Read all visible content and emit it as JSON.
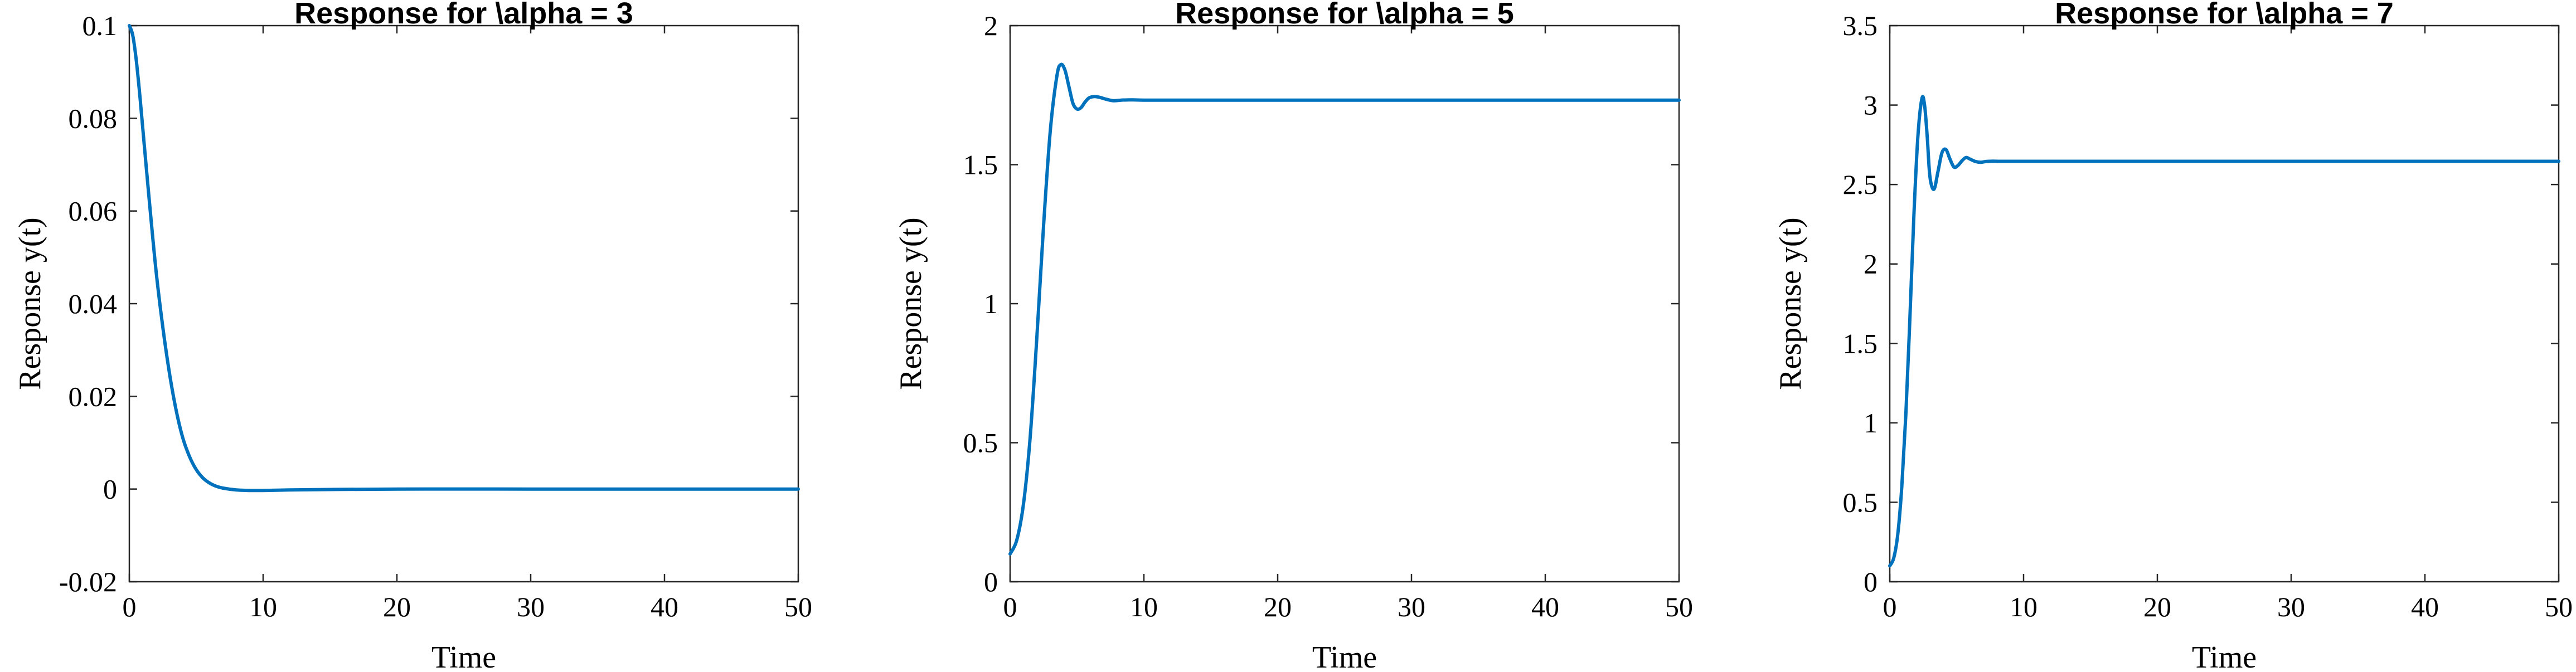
{
  "chart_data": [
    {
      "type": "line",
      "title": "Response for \\alpha = 3",
      "xlabel": "Time",
      "ylabel": "Response y(t)",
      "xlim": [
        0,
        50
      ],
      "ylim": [
        -0.02,
        0.1
      ],
      "xticks": [
        0,
        10,
        20,
        30,
        40,
        50
      ],
      "yticks": [
        -0.02,
        0,
        0.02,
        0.04,
        0.06,
        0.08,
        0.1
      ],
      "ytick_labels": [
        "-0.02",
        "0",
        "0.02",
        "0.04",
        "0.06",
        "0.08",
        "0.1"
      ],
      "grid": false,
      "series": [
        {
          "color": "#0072BD",
          "x": [
            0,
            0.25,
            0.5,
            0.75,
            1,
            1.5,
            2,
            2.5,
            3,
            3.5,
            4,
            4.5,
            5,
            5.5,
            6,
            6.5,
            7,
            8,
            9,
            10,
            12,
            15,
            20,
            30,
            40,
            50
          ],
          "y": [
            0.1,
            0.098,
            0.093,
            0.086,
            0.078,
            0.062,
            0.047,
            0.035,
            0.025,
            0.017,
            0.011,
            0.007,
            0.0042,
            0.0024,
            0.0013,
            0.0006,
            0.0002,
            -0.0002,
            -0.0003,
            -0.0003,
            -0.0002,
            -0.0001,
            0,
            0,
            0,
            0
          ]
        }
      ]
    },
    {
      "type": "line",
      "title": "Response for \\alpha = 5",
      "xlabel": "Time",
      "ylabel": "Response y(t)",
      "xlim": [
        0,
        50
      ],
      "ylim": [
        0,
        2
      ],
      "xticks": [
        0,
        10,
        20,
        30,
        40,
        50
      ],
      "yticks": [
        0,
        0.5,
        1,
        1.5,
        2
      ],
      "ytick_labels": [
        "0",
        "0.5",
        "1",
        "1.5",
        "2"
      ],
      "grid": false,
      "series": [
        {
          "color": "#0072BD",
          "x": [
            0,
            0.5,
            1,
            1.5,
            2,
            2.5,
            3,
            3.5,
            3.8,
            4.1,
            4.4,
            4.7,
            5,
            5.3,
            5.6,
            5.9,
            6.3,
            6.7,
            7.2,
            7.7,
            8.3,
            9,
            10,
            12,
            15,
            20,
            30,
            40,
            50
          ],
          "y": [
            0.1,
            0.15,
            0.28,
            0.52,
            0.88,
            1.28,
            1.62,
            1.82,
            1.86,
            1.84,
            1.78,
            1.72,
            1.7,
            1.705,
            1.725,
            1.74,
            1.745,
            1.742,
            1.735,
            1.73,
            1.732,
            1.733,
            1.732,
            1.732,
            1.732,
            1.732,
            1.732,
            1.732,
            1.732
          ]
        }
      ]
    },
    {
      "type": "line",
      "title": "Response for \\alpha = 7",
      "xlabel": "Time",
      "ylabel": "Response y(t)",
      "xlim": [
        0,
        50
      ],
      "ylim": [
        0,
        3.5
      ],
      "xticks": [
        0,
        10,
        20,
        30,
        40,
        50
      ],
      "yticks": [
        0,
        0.5,
        1,
        1.5,
        2,
        2.5,
        3,
        3.5
      ],
      "ytick_labels": [
        "0",
        "0.5",
        "1",
        "1.5",
        "2",
        "2.5",
        "3",
        "3.5"
      ],
      "grid": false,
      "series": [
        {
          "color": "#0072BD",
          "x": [
            0,
            0.3,
            0.6,
            0.9,
            1.2,
            1.5,
            1.8,
            2.1,
            2.4,
            2.6,
            2.8,
            3.0,
            3.3,
            3.6,
            3.9,
            4.2,
            4.5,
            4.8,
            5.1,
            5.4,
            5.7,
            6.0,
            6.4,
            6.8,
            7.2,
            7.7,
            8.3,
            9,
            10,
            12,
            15,
            20,
            30,
            40,
            50
          ],
          "y": [
            0.1,
            0.15,
            0.3,
            0.6,
            1.05,
            1.65,
            2.3,
            2.8,
            3.04,
            3.0,
            2.8,
            2.55,
            2.47,
            2.58,
            2.7,
            2.72,
            2.66,
            2.61,
            2.62,
            2.65,
            2.67,
            2.66,
            2.645,
            2.64,
            2.645,
            2.647,
            2.646,
            2.646,
            2.646,
            2.646,
            2.646,
            2.646,
            2.646,
            2.646,
            2.646
          ]
        }
      ]
    }
  ]
}
